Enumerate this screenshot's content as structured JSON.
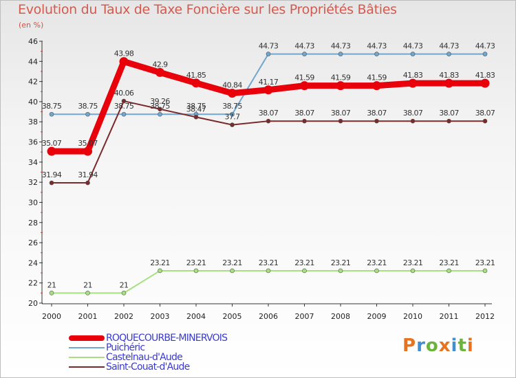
{
  "title": "Evolution du Taux de Taxe Foncière sur les Propriétés Bâties",
  "unit": "(en %)",
  "logo": {
    "text": "Proxiti",
    "colors": [
      "#e8731f",
      "#3f8fd2",
      "#6cb33e",
      "#e8731f",
      "#3f8fd2",
      "#6cb33e",
      "#e8731f"
    ]
  },
  "chart_data": {
    "type": "line",
    "title": "Evolution du Taux de Taxe Foncière sur les Propriétés Bâties",
    "ylabel": "(en %)",
    "xlabel": "",
    "x": [
      "2000",
      "2001",
      "2002",
      "2003",
      "2004",
      "2005",
      "2006",
      "2007",
      "2008",
      "2009",
      "2010",
      "2011",
      "2012"
    ],
    "ylim": [
      20,
      46
    ],
    "yticks": [
      "20",
      "22",
      "24",
      "26",
      "28",
      "30",
      "32",
      "34",
      "36",
      "38",
      "40",
      "42",
      "44",
      "46"
    ],
    "grid": false,
    "legend": "bottom-left",
    "series": [
      {
        "name": "ROQUECOURBE-MINERVOIS",
        "color": "#e8000b",
        "values": [
          35.07,
          35.07,
          43.98,
          42.9,
          41.85,
          40.84,
          41.17,
          41.59,
          41.59,
          41.59,
          41.83,
          41.83,
          41.83
        ],
        "labels": [
          "35.07",
          "35.07",
          "43.98",
          "42.9",
          "41.85",
          "40.84",
          "41.17",
          "41.59",
          "41.59",
          "41.59",
          "41.83",
          "41.83",
          "41.83"
        ]
      },
      {
        "name": "Puichéric",
        "color": "#6fa7cf",
        "values": [
          38.75,
          38.75,
          38.75,
          38.75,
          38.75,
          38.75,
          44.73,
          44.73,
          44.73,
          44.73,
          44.73,
          44.73,
          44.73
        ],
        "labels": [
          "38.75",
          "38.75",
          "38.75",
          "38.75",
          "38.75",
          "38.75",
          "44.73",
          "44.73",
          "44.73",
          "44.73",
          "44.73",
          "44.73",
          "44.73"
        ]
      },
      {
        "name": "Castelnau-d'Aude",
        "color": "#a8e080",
        "values": [
          21,
          21,
          21,
          23.21,
          23.21,
          23.21,
          23.21,
          23.21,
          23.21,
          23.21,
          23.21,
          23.21,
          23.21
        ],
        "labels": [
          "21",
          "21",
          "21",
          "23.21",
          "23.21",
          "23.21",
          "23.21",
          "23.21",
          "23.21",
          "23.21",
          "23.21",
          "23.21",
          "23.21"
        ]
      },
      {
        "name": "Saint-Couat-d'Aude",
        "color": "#7a2a2a",
        "values": [
          31.94,
          31.94,
          40.06,
          39.26,
          38.47,
          37.7,
          38.07,
          38.07,
          38.07,
          38.07,
          38.07,
          38.07,
          38.07
        ],
        "labels": [
          "31.94",
          "31.94",
          "40.06",
          "39.26",
          "38.47",
          "37.7",
          "38.07",
          "38.07",
          "38.07",
          "38.07",
          "38.07",
          "38.07",
          "38.07"
        ]
      }
    ]
  }
}
